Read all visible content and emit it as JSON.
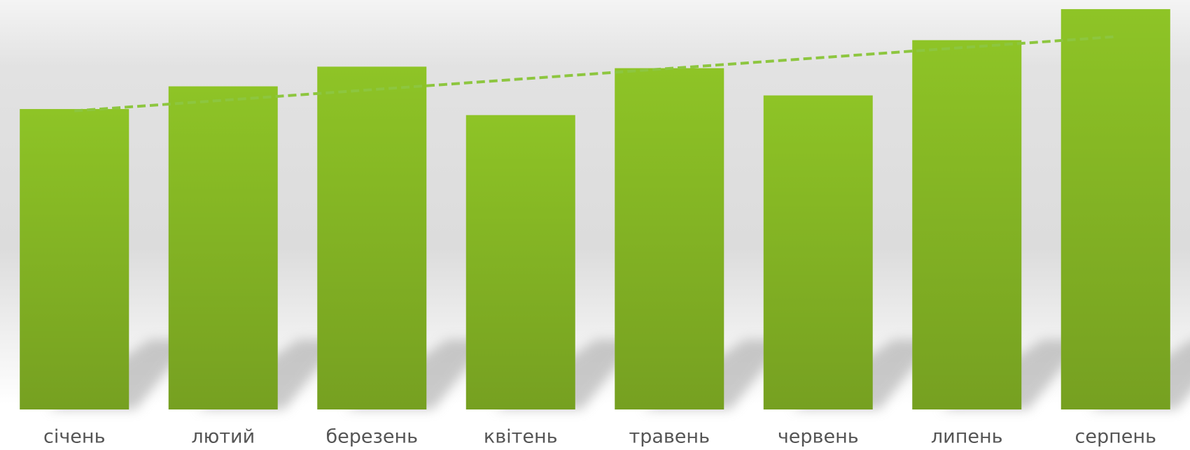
{
  "chart_data": {
    "type": "bar",
    "categories": [
      "січень",
      "лютий",
      "березень",
      "квітень",
      "травень",
      "червень",
      "липень",
      "серпень"
    ],
    "values": [
      397,
      427,
      453,
      389,
      451,
      415,
      488,
      529
    ],
    "color": "#84b224",
    "trendline_color": "#8dc63f",
    "trendline": true,
    "ylim": [
      0,
      530
    ]
  }
}
